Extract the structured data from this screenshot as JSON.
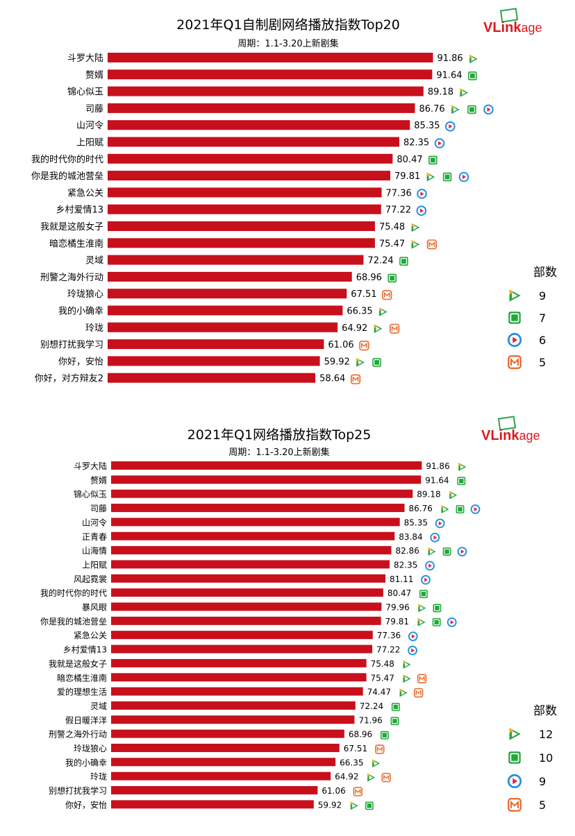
{
  "brand": {
    "logo_text_bold": "VLink",
    "logo_text_light": "age",
    "bar_color": "#c8101c",
    "platform_colors": {
      "tencent": "#2aa34a",
      "iqiyi": "#22a83a",
      "youku": "#1f8ee6",
      "mgtv": "#e8682a"
    }
  },
  "chart_data": [
    {
      "type": "bar",
      "orientation": "horizontal",
      "title": "2021年Q1自制剧网络播放指数Top20",
      "subtitle": "周期：1.1-3.20上新剧集",
      "xlim": [
        0,
        100
      ],
      "grid": false,
      "legend_placement": "right",
      "legend": {
        "title": "部数",
        "entries": [
          {
            "platform": "tencent",
            "icon": "tencent-video-icon",
            "count": "9"
          },
          {
            "platform": "iqiyi",
            "icon": "iqiyi-icon",
            "count": "7"
          },
          {
            "platform": "youku",
            "icon": "youku-icon",
            "count": "6"
          },
          {
            "platform": "mgtv",
            "icon": "mgtv-icon",
            "count": "5"
          }
        ]
      },
      "categories": [
        "斗罗大陆",
        "赘婿",
        "锦心似玉",
        "司藤",
        "山河令",
        "上阳赋",
        "我的时代你的时代",
        "你是我的城池营垒",
        "紧急公关",
        "乡村爱情13",
        "我就是这般女子",
        "暗恋橘生淮南",
        "灵域",
        "刑警之海外行动",
        "玲珑狼心",
        "我的小确幸",
        "玲珑",
        "别想打扰我学习",
        "你好，安怡",
        "你好，对方辩友2"
      ],
      "values": [
        91.86,
        91.64,
        89.18,
        86.76,
        85.35,
        82.35,
        80.47,
        79.81,
        77.36,
        77.22,
        75.48,
        75.47,
        72.24,
        68.96,
        67.51,
        66.35,
        64.92,
        61.06,
        59.92,
        58.64
      ],
      "value_labels": [
        "91.86",
        "91.64",
        "89.18",
        "86.76",
        "85.35",
        "82.35",
        "80.47",
        "79.81",
        "77.36",
        "77.22",
        "75.48",
        "75.47",
        "72.24",
        "68.96",
        "67.51",
        "66.35",
        "64.92",
        "61.06",
        "59.92",
        "58.64"
      ],
      "platforms": [
        [
          "tencent"
        ],
        [
          "iqiyi"
        ],
        [
          "tencent"
        ],
        [
          "tencent",
          "iqiyi",
          "youku"
        ],
        [
          "youku"
        ],
        [
          "youku"
        ],
        [
          "iqiyi"
        ],
        [
          "tencent",
          "iqiyi",
          "youku"
        ],
        [
          "youku"
        ],
        [
          "youku"
        ],
        [
          "tencent"
        ],
        [
          "tencent",
          "mgtv"
        ],
        [
          "iqiyi"
        ],
        [
          "iqiyi"
        ],
        [
          "mgtv"
        ],
        [
          "tencent"
        ],
        [
          "tencent",
          "mgtv"
        ],
        [
          "mgtv"
        ],
        [
          "tencent",
          "iqiyi"
        ],
        [
          "mgtv"
        ]
      ]
    },
    {
      "type": "bar",
      "orientation": "horizontal",
      "title": "2021年Q1网络播放指数Top25",
      "subtitle": "周期：1.1-3.20上新剧集",
      "xlim": [
        0,
        100
      ],
      "grid": false,
      "legend_placement": "right",
      "legend": {
        "title": "部数",
        "entries": [
          {
            "platform": "tencent",
            "icon": "tencent-video-icon",
            "count": "12"
          },
          {
            "platform": "iqiyi",
            "icon": "iqiyi-icon",
            "count": "10"
          },
          {
            "platform": "youku",
            "icon": "youku-icon",
            "count": "9"
          },
          {
            "platform": "mgtv",
            "icon": "mgtv-icon",
            "count": "5"
          }
        ]
      },
      "categories": [
        "斗罗大陆",
        "赘婿",
        "锦心似玉",
        "司藤",
        "山河令",
        "正青春",
        "山海情",
        "上阳赋",
        "风起霓裳",
        "我的时代你的时代",
        "暴风眼",
        "你是我的城池营垒",
        "紧急公关",
        "乡村爱情13",
        "我就是这般女子",
        "暗恋橘生淮南",
        "爱的理想生活",
        "灵域",
        "假日暖洋洋",
        "刑警之海外行动",
        "玲珑狼心",
        "我的小确幸",
        "玲珑",
        "别想打扰我学习",
        "你好，安怡"
      ],
      "values": [
        91.86,
        91.64,
        89.18,
        86.76,
        85.35,
        83.84,
        82.86,
        82.35,
        81.11,
        80.47,
        79.96,
        79.81,
        77.36,
        77.22,
        75.48,
        75.47,
        74.47,
        72.24,
        71.96,
        68.96,
        67.51,
        66.35,
        64.92,
        61.06,
        59.92
      ],
      "value_labels": [
        "91.86",
        "91.64",
        "89.18",
        "86.76",
        "85.35",
        "83.84",
        "82.86",
        "82.35",
        "81.11",
        "80.47",
        "79.96",
        "79.81",
        "77.36",
        "77.22",
        "75.48",
        "75.47",
        "74.47",
        "72.24",
        "71.96",
        "68.96",
        "67.51",
        "66.35",
        "64.92",
        "61.06",
        "59.92"
      ],
      "platforms": [
        [
          "tencent"
        ],
        [
          "iqiyi"
        ],
        [
          "tencent"
        ],
        [
          "tencent",
          "iqiyi",
          "youku"
        ],
        [
          "youku"
        ],
        [
          "youku"
        ],
        [
          "tencent",
          "iqiyi",
          "youku"
        ],
        [
          "youku"
        ],
        [
          "youku"
        ],
        [
          "iqiyi"
        ],
        [
          "tencent",
          "iqiyi"
        ],
        [
          "tencent",
          "iqiyi",
          "youku"
        ],
        [
          "youku"
        ],
        [
          "youku"
        ],
        [
          "tencent"
        ],
        [
          "tencent",
          "mgtv"
        ],
        [
          "tencent",
          "mgtv"
        ],
        [
          "iqiyi"
        ],
        [
          "iqiyi"
        ],
        [
          "iqiyi"
        ],
        [
          "mgtv"
        ],
        [
          "tencent"
        ],
        [
          "tencent",
          "mgtv"
        ],
        [
          "mgtv"
        ],
        [
          "tencent",
          "iqiyi"
        ]
      ]
    }
  ]
}
